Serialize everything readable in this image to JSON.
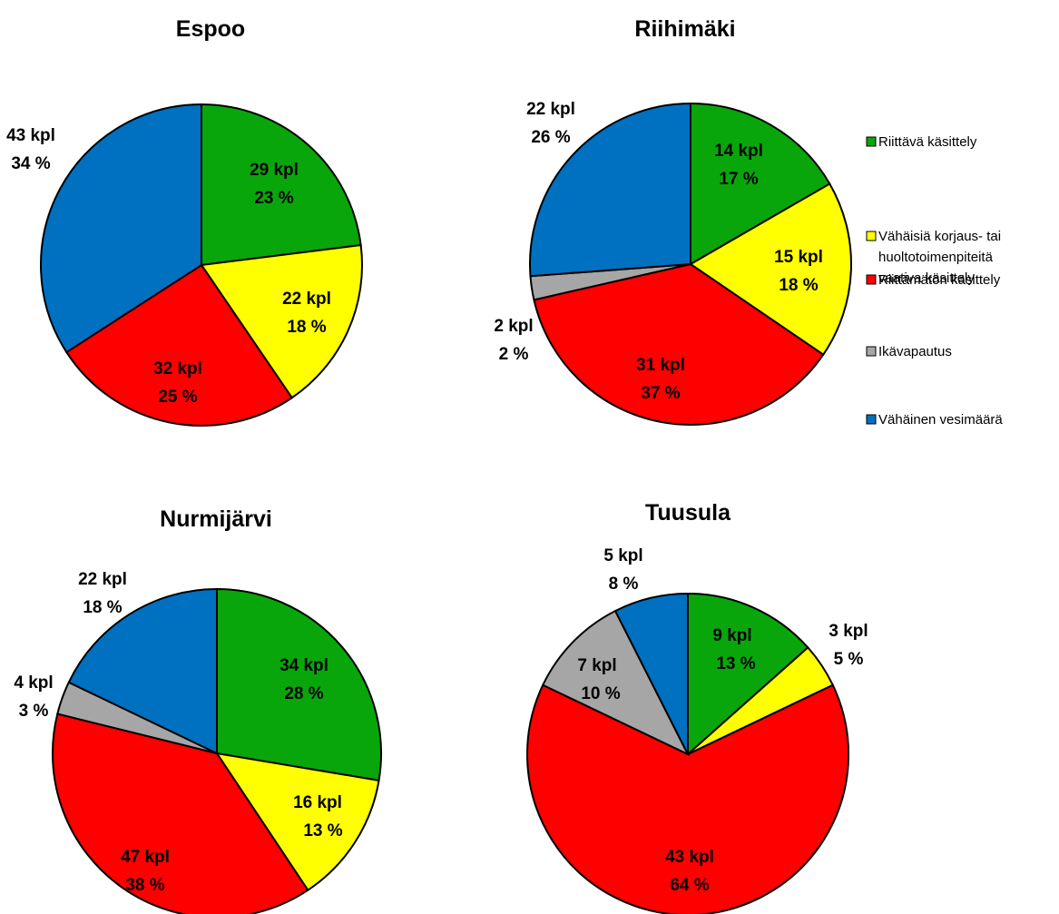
{
  "legend": {
    "placement": "right",
    "items": [
      {
        "label": "Riittävä käsittely",
        "color": "#09A60B"
      },
      {
        "label": "Vähäisiä korjaus- tai",
        "label2": "huoltotoimenpiteitä",
        "label3": "vaativa käsittely",
        "color": "#FFFF00"
      },
      {
        "label": "Riittämätön käsittely",
        "color": "#FF0000"
      },
      {
        "label": "Ikävapautus",
        "color": "#A6A6A6"
      },
      {
        "label": "Vähäinen vesimäärä",
        "color": "#0070C0"
      }
    ]
  },
  "chart_data": [
    {
      "type": "pie",
      "title": "Espoo",
      "categories": [
        "Riittävä käsittely",
        "Vähäisiä korjaus- tai huoltotoimenpiteitä vaativa käsittely",
        "Riittämätön käsittely",
        "Ikävapautus",
        "Vähäinen vesimäärä"
      ],
      "values": [
        29,
        22,
        32,
        0,
        43
      ],
      "labels": [
        {
          "count": "29 kpl",
          "pct": "23 %"
        },
        {
          "count": "22 kpl",
          "pct": "18 %"
        },
        {
          "count": "32 kpl",
          "pct": "25 %"
        },
        null,
        {
          "count": "43 kpl",
          "pct": "34 %"
        }
      ]
    },
    {
      "type": "pie",
      "title": "Riihimäki",
      "categories": [
        "Riittävä käsittely",
        "Vähäisiä korjaus- tai huoltotoimenpiteitä vaativa käsittely",
        "Riittämätön käsittely",
        "Ikävapautus",
        "Vähäinen vesimäärä"
      ],
      "values": [
        14,
        15,
        31,
        2,
        22
      ],
      "labels": [
        {
          "count": "14 kpl",
          "pct": "17 %"
        },
        {
          "count": "15 kpl",
          "pct": "18 %"
        },
        {
          "count": "31 kpl",
          "pct": "37 %"
        },
        {
          "count": "2 kpl",
          "pct": "2 %"
        },
        {
          "count": "22 kpl",
          "pct": "26 %"
        }
      ]
    },
    {
      "type": "pie",
      "title": "Nurmijärvi",
      "categories": [
        "Riittävä käsittely",
        "Vähäisiä korjaus- tai huoltotoimenpiteitä vaativa käsittely",
        "Riittämätön käsittely",
        "Ikävapautus",
        "Vähäinen vesimäärä"
      ],
      "values": [
        34,
        16,
        47,
        4,
        22
      ],
      "labels": [
        {
          "count": "34 kpl",
          "pct": "28 %"
        },
        {
          "count": "16 kpl",
          "pct": "13 %"
        },
        {
          "count": "47 kpl",
          "pct": "38 %"
        },
        {
          "count": "4 kpl",
          "pct": "3 %"
        },
        {
          "count": "22 kpl",
          "pct": "18 %"
        }
      ]
    },
    {
      "type": "pie",
      "title": "Tuusula",
      "categories": [
        "Riittävä käsittely",
        "Vähäisiä korjaus- tai huoltotoimenpiteitä vaativa käsittely",
        "Riittämätön käsittely",
        "Ikävapautus",
        "Vähäinen vesimäärä"
      ],
      "values": [
        9,
        3,
        43,
        7,
        5
      ],
      "labels": [
        {
          "count": "9 kpl",
          "pct": "13 %"
        },
        {
          "count": "3 kpl",
          "pct": "5 %"
        },
        {
          "count": "43 kpl",
          "pct": "64 %"
        },
        {
          "count": "7 kpl",
          "pct": "10 %"
        },
        {
          "count": "5 kpl",
          "pct": "8 %"
        }
      ]
    }
  ]
}
